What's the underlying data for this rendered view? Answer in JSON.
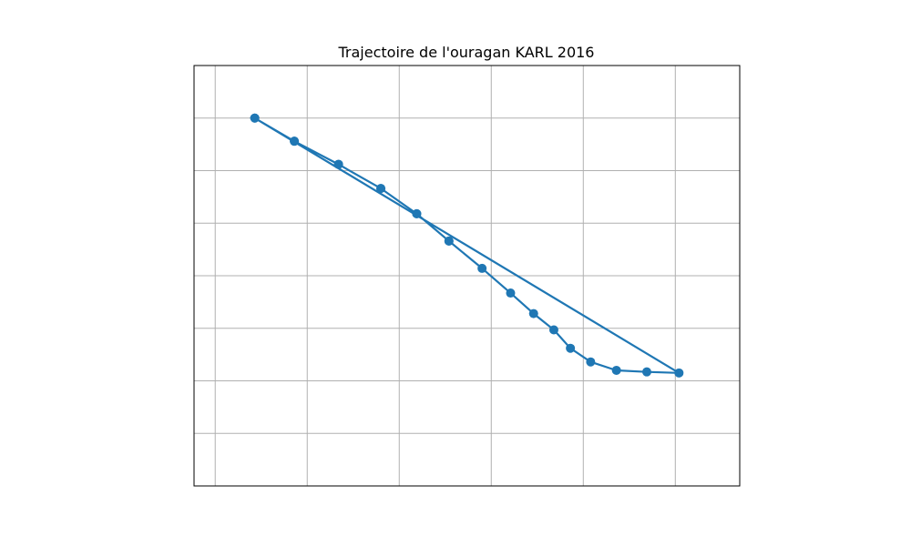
{
  "chart_data": {
    "type": "line",
    "title": "Trajectoire de l'ouragan KARL 2016",
    "xlabel": "",
    "ylabel": "",
    "grid": true,
    "xlim": [
      -66.23,
      -60.3
    ],
    "ylim": [
      18.0,
      34.0
    ],
    "x_gridlines": [
      -66.0,
      -65.0,
      -64.0,
      -63.0,
      -62.0,
      -61.0
    ],
    "y_gridlines": [
      20.0,
      22.0,
      24.0,
      26.0,
      28.0,
      30.0,
      32.0
    ],
    "series": [
      {
        "x": [
          -65.57,
          -65.14,
          -64.66,
          -64.2,
          -63.81,
          -63.46,
          -63.1,
          -62.79,
          -62.54,
          -62.32,
          -62.14,
          -61.92,
          -61.64,
          -61.31,
          -60.96,
          -65.57,
          -65.14,
          -64.66,
          -64.2,
          -63.81,
          -63.46
        ],
        "y": [
          32.0,
          31.12,
          30.24,
          29.32,
          28.36,
          27.32,
          26.28,
          25.34,
          24.56,
          23.94,
          23.24,
          22.72,
          22.4,
          22.34,
          22.3,
          32.0,
          31.12,
          30.24,
          29.32,
          28.36,
          27.32
        ]
      }
    ],
    "colors": {
      "line": "#1f77b4",
      "grid": "#b0b0b0",
      "axes": "#000000"
    }
  }
}
